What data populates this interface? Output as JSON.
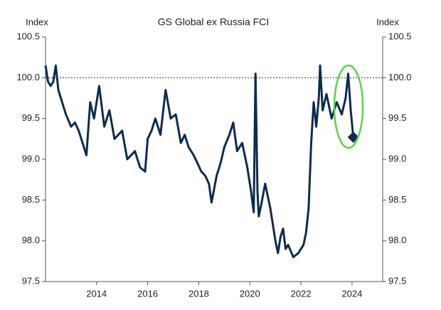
{
  "chart_data": {
    "type": "line",
    "title": "GS Global ex Russia FCI",
    "ylabel": "Index",
    "y2label": "Index",
    "x": [
      2012.0,
      2012.1,
      2012.2,
      2012.3,
      2012.4,
      2012.5,
      2012.65,
      2012.8,
      2013.0,
      2013.15,
      2013.3,
      2013.45,
      2013.6,
      2013.75,
      2013.9,
      2014.1,
      2014.3,
      2014.5,
      2014.7,
      2014.85,
      2015.0,
      2015.2,
      2015.35,
      2015.5,
      2015.7,
      2015.9,
      2016.0,
      2016.15,
      2016.3,
      2016.5,
      2016.7,
      2016.9,
      2017.1,
      2017.3,
      2017.45,
      2017.6,
      2017.8,
      2017.95,
      2018.1,
      2018.25,
      2018.4,
      2018.5,
      2018.7,
      2018.85,
      2019.0,
      2019.2,
      2019.35,
      2019.5,
      2019.7,
      2019.9,
      2020.05,
      2020.15,
      2020.22,
      2020.3,
      2020.35,
      2020.45,
      2020.6,
      2020.8,
      2021.0,
      2021.1,
      2021.2,
      2021.3,
      2021.4,
      2021.5,
      2021.7,
      2021.9,
      2022.1,
      2022.2,
      2022.3,
      2022.4,
      2022.5,
      2022.6,
      2022.7,
      2022.75,
      2022.85,
      2023.0,
      2023.2,
      2023.4,
      2023.6,
      2023.75,
      2023.85,
      2023.95,
      2024.05
    ],
    "series": [
      {
        "name": "GS Global ex Russia FCI",
        "color": "#0d2b4e",
        "values": [
          100.15,
          99.95,
          99.9,
          99.95,
          100.15,
          99.85,
          99.7,
          99.55,
          99.4,
          99.45,
          99.35,
          99.2,
          99.05,
          99.7,
          99.5,
          99.9,
          99.4,
          99.6,
          99.25,
          99.3,
          99.35,
          99.0,
          99.05,
          99.1,
          98.9,
          98.85,
          99.25,
          99.35,
          99.5,
          99.3,
          99.85,
          99.5,
          99.55,
          99.2,
          99.3,
          99.15,
          99.05,
          98.95,
          98.85,
          98.8,
          98.7,
          98.47,
          98.8,
          98.95,
          99.15,
          99.3,
          99.45,
          99.1,
          99.2,
          98.9,
          98.6,
          98.35,
          100.05,
          98.6,
          98.3,
          98.45,
          98.7,
          98.4,
          98.0,
          97.85,
          98.05,
          98.15,
          97.9,
          97.95,
          97.8,
          97.85,
          97.95,
          98.1,
          98.4,
          99.2,
          99.7,
          99.4,
          99.75,
          100.15,
          99.6,
          99.8,
          99.5,
          99.7,
          99.55,
          99.75,
          100.05,
          99.6,
          99.27
        ]
      }
    ],
    "xlim": [
      2012.0,
      2025.2
    ],
    "xticks": [
      2014,
      2016,
      2018,
      2020,
      2022,
      2024
    ],
    "ylim": [
      97.5,
      100.5
    ],
    "yticks": [
      97.5,
      {
        "value": 98,
        "label": "98.0"
      },
      98.5,
      {
        "value": 99,
        "label": "99.0"
      },
      99.5,
      {
        "value": 100,
        "label": "100.0"
      },
      100.5
    ],
    "y2lim": [
      97.5,
      100.5
    ],
    "y2ticks": [
      97.5,
      {
        "value": 98,
        "label": "98.0"
      },
      98.5,
      {
        "value": 99,
        "label": "99.0"
      },
      99.5,
      {
        "value": 100,
        "label": "100.0"
      },
      100.5
    ],
    "reference_line": 100,
    "highlight_color": "#5bd34a"
  }
}
